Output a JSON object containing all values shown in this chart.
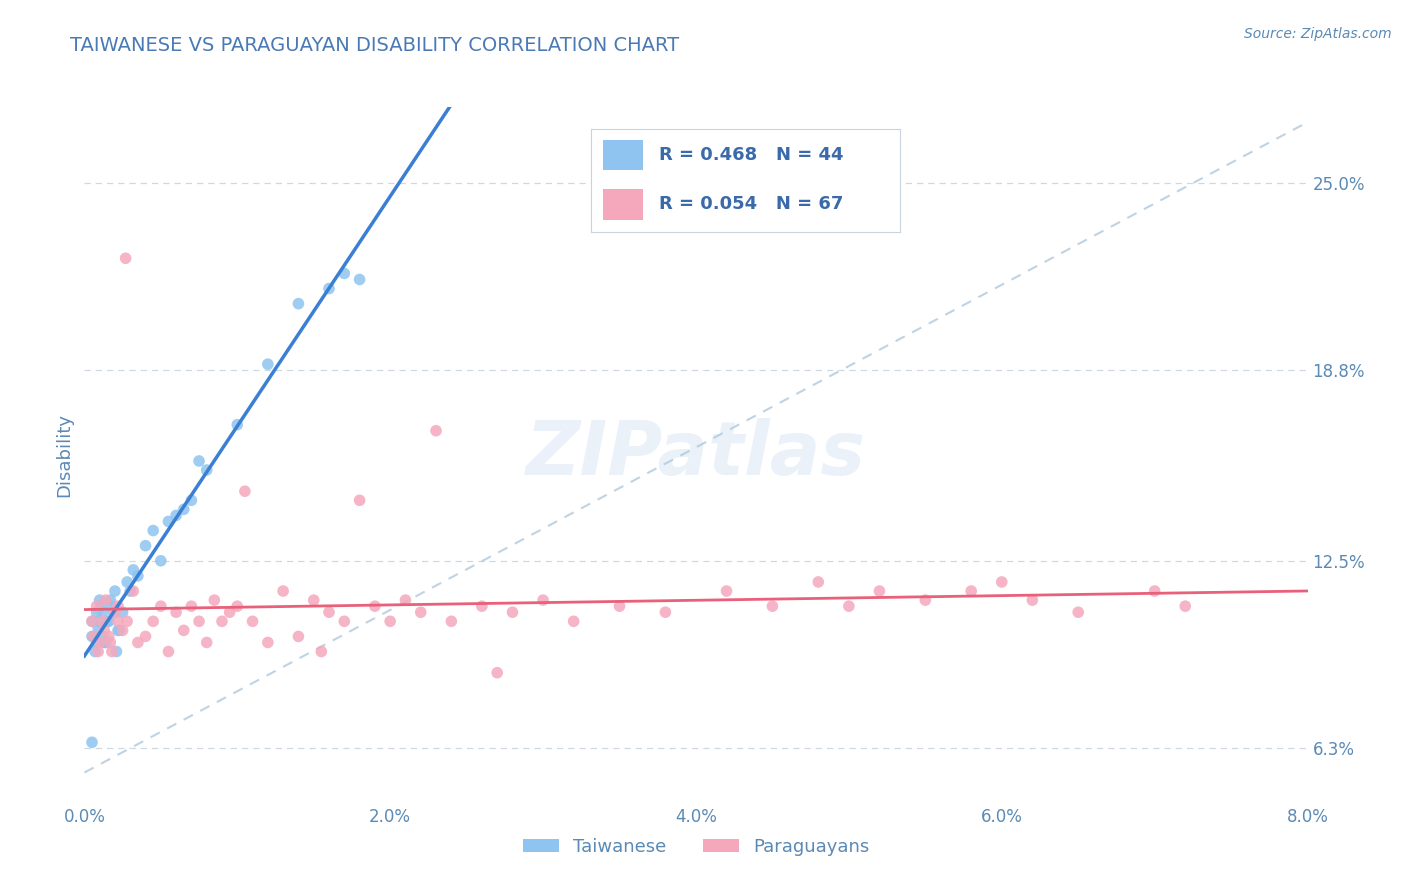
{
  "title": "TAIWANESE VS PARAGUAYAN DISABILITY CORRELATION CHART",
  "source_text": "Source: ZipAtlas.com",
  "ylabel": "Disability",
  "xlabel_ticks": [
    "0.0%",
    "2.0%",
    "4.0%",
    "6.0%",
    "8.0%"
  ],
  "xlabel_vals": [
    0.0,
    2.0,
    4.0,
    6.0,
    8.0
  ],
  "ylabel_ticks": [
    "6.3%",
    "12.5%",
    "18.8%",
    "25.0%"
  ],
  "ylabel_vals": [
    6.3,
    12.5,
    18.8,
    25.0
  ],
  "xmin": 0.0,
  "xmax": 8.0,
  "ymin": 4.5,
  "ymax": 27.5,
  "r_taiwanese": 0.468,
  "n_taiwanese": 44,
  "r_paraguayan": 0.054,
  "n_paraguayan": 67,
  "taiwanese_color": "#8ec4ef",
  "paraguayan_color": "#f5a8bc",
  "trend_taiwanese_color": "#3a7fd4",
  "trend_paraguayan_color": "#e8607a",
  "diagonal_color": "#b0c8dc",
  "background_color": "#ffffff",
  "grid_color": "#ccd8e4",
  "title_color": "#4a7ab5",
  "axis_label_color": "#5a8ab5",
  "legend_text_color": "#3a6aaa",
  "tw_x": [
    0.05,
    0.08,
    0.1,
    0.12,
    0.14,
    0.16,
    0.18,
    0.2,
    0.22,
    0.25,
    0.05,
    0.07,
    0.09,
    0.11,
    0.13,
    0.15,
    0.17,
    0.19,
    0.21,
    0.23,
    0.06,
    0.08,
    0.1,
    0.12,
    0.3,
    0.35,
    0.4,
    0.5,
    0.6,
    0.7,
    0.8,
    1.0,
    1.2,
    1.4,
    1.6,
    1.7,
    1.8,
    0.45,
    0.55,
    0.65,
    0.28,
    0.32,
    0.75,
    0.05
  ],
  "tw_y": [
    10.5,
    10.8,
    11.2,
    10.0,
    9.8,
    10.5,
    11.0,
    11.5,
    10.2,
    10.8,
    10.0,
    9.5,
    10.3,
    11.0,
    9.8,
    10.5,
    11.2,
    10.8,
    9.5,
    10.2,
    10.0,
    9.8,
    10.5,
    10.8,
    11.5,
    12.0,
    13.0,
    12.5,
    14.0,
    14.5,
    15.5,
    17.0,
    19.0,
    21.0,
    21.5,
    22.0,
    21.8,
    13.5,
    13.8,
    14.2,
    11.8,
    12.2,
    15.8,
    6.5
  ],
  "pa_x": [
    0.05,
    0.08,
    0.1,
    0.12,
    0.14,
    0.16,
    0.18,
    0.2,
    0.22,
    0.25,
    0.28,
    0.32,
    0.35,
    0.4,
    0.45,
    0.5,
    0.55,
    0.6,
    0.65,
    0.7,
    0.75,
    0.8,
    0.85,
    0.9,
    0.95,
    1.0,
    1.1,
    1.2,
    1.3,
    1.4,
    1.5,
    1.6,
    1.7,
    1.8,
    1.9,
    2.0,
    2.1,
    2.2,
    2.4,
    2.6,
    2.8,
    3.0,
    3.2,
    3.5,
    3.8,
    4.2,
    4.5,
    4.8,
    5.0,
    5.2,
    5.5,
    5.8,
    6.0,
    6.2,
    6.5,
    7.0,
    7.2,
    0.06,
    0.09,
    0.13,
    0.17,
    0.22,
    0.27,
    1.05,
    1.55,
    2.3,
    2.7
  ],
  "pa_y": [
    10.5,
    11.0,
    9.8,
    10.5,
    11.2,
    10.0,
    9.5,
    10.8,
    11.0,
    10.2,
    10.5,
    11.5,
    9.8,
    10.0,
    10.5,
    11.0,
    9.5,
    10.8,
    10.2,
    11.0,
    10.5,
    9.8,
    11.2,
    10.5,
    10.8,
    11.0,
    10.5,
    9.8,
    11.5,
    10.0,
    11.2,
    10.8,
    10.5,
    14.5,
    11.0,
    10.5,
    11.2,
    10.8,
    10.5,
    11.0,
    10.8,
    11.2,
    10.5,
    11.0,
    10.8,
    11.5,
    11.0,
    11.8,
    11.0,
    11.5,
    11.2,
    11.5,
    11.8,
    11.2,
    10.8,
    11.5,
    11.0,
    10.0,
    9.5,
    10.2,
    9.8,
    10.5,
    22.5,
    14.8,
    9.5,
    16.8,
    8.8
  ],
  "diag_x0": 0.0,
  "diag_y0": 5.5,
  "diag_x1": 8.0,
  "diag_y1": 27.0
}
